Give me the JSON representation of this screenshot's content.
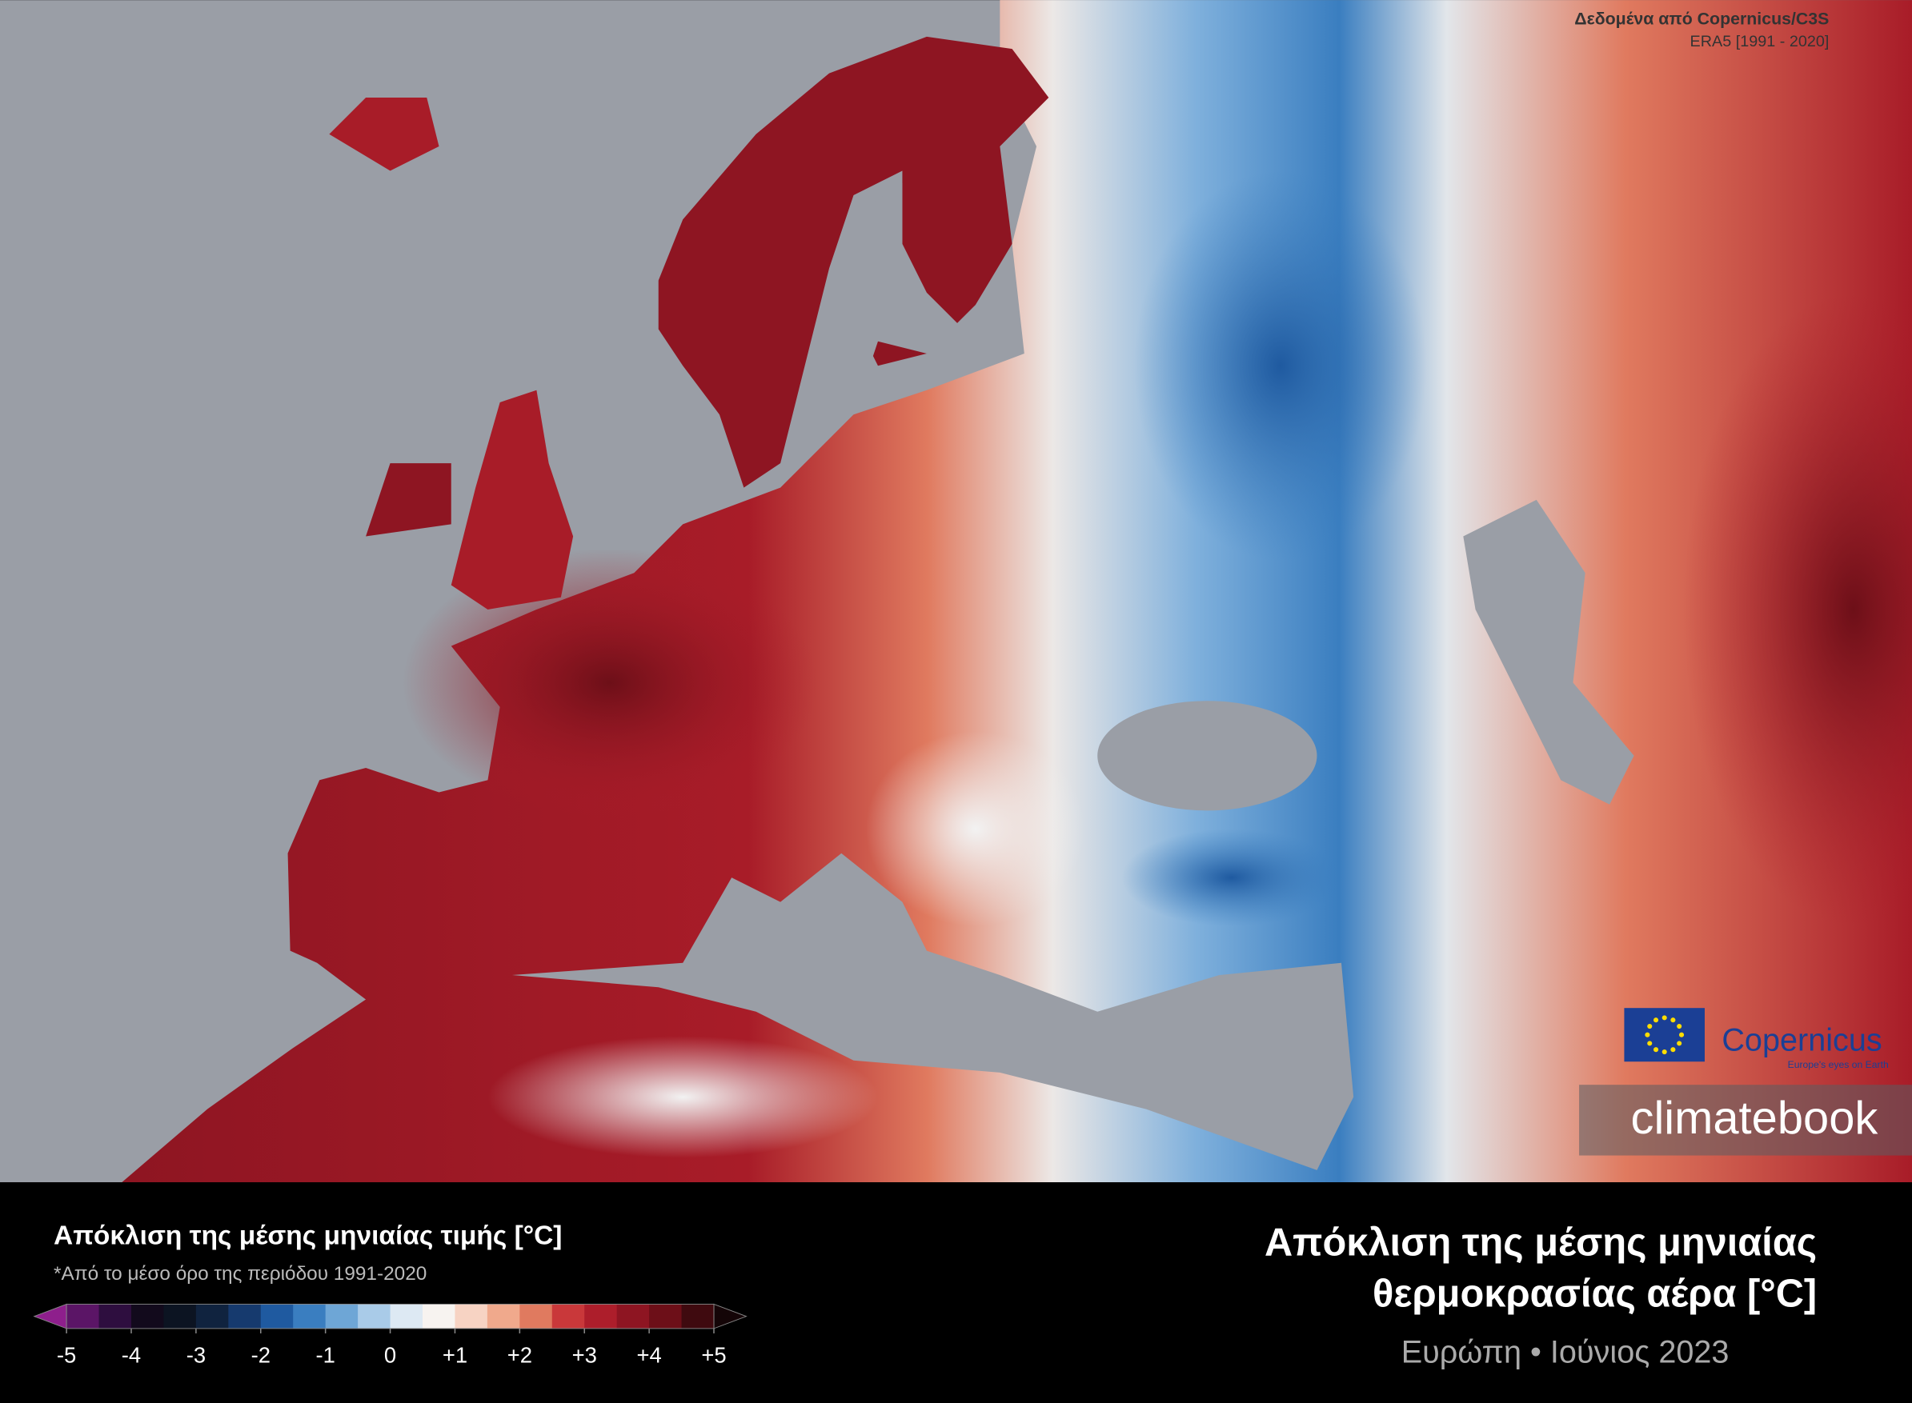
{
  "credit": {
    "source": "Δεδομένα από Copernicus/C3S",
    "reference": "ERA5 [1991 - 2020]"
  },
  "logos": {
    "copernicus": "Copernicus",
    "copernicus_tagline": "Europe's eyes on Earth",
    "brand": "climatebook"
  },
  "legend": {
    "title": "Απόκλιση της μέσης μηνιαίας τιμής [°C]",
    "note": "*Από το μέσο όρο της περιόδου 1991-2020",
    "lim": [
      -5.5,
      5.5
    ],
    "colors": [
      "#8e1f8c",
      "#5b1566",
      "#2e0e3f",
      "#120a1c",
      "#0c1422",
      "#10233f",
      "#163a6e",
      "#1f5aa0",
      "#3a7ec0",
      "#6ea6d6",
      "#a9cbe8",
      "#dde9f3",
      "#f7f3f0",
      "#f7d3c3",
      "#f0a98c",
      "#e07a5f",
      "#c9383a",
      "#ad1e2b",
      "#8e1522",
      "#6d0f18",
      "#3f0a0f",
      "#140507"
    ],
    "ticks": [
      -5,
      -4,
      -3,
      -2,
      -1,
      0,
      {
        "value": 1,
        "label": "+1"
      },
      {
        "value": 2,
        "label": "+2"
      },
      {
        "value": 3,
        "label": "+3"
      },
      {
        "value": 4,
        "label": "+4"
      },
      {
        "value": 5,
        "label": "+5"
      }
    ]
  },
  "title": {
    "line1": "Απόκλιση της μέσης μηνιαίας",
    "line2": "θερμοκρασίας αέρα [°C]",
    "subtitle": "Ευρώπη • Ιούνιος 2023"
  }
}
